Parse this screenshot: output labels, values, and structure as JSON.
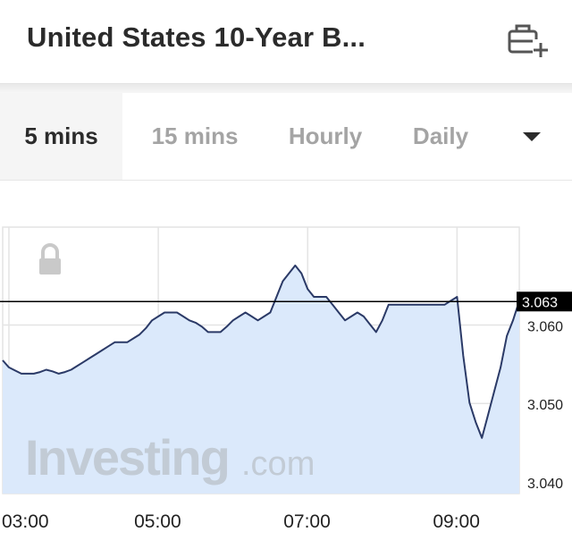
{
  "header": {
    "title": "United States 10-Year B...",
    "portfolio_icon": "briefcase-plus-icon"
  },
  "tabs": [
    {
      "label": "5 mins",
      "active": true
    },
    {
      "label": "15 mins",
      "active": false
    },
    {
      "label": "Hourly",
      "active": false
    },
    {
      "label": "Daily",
      "active": false
    }
  ],
  "dropdown_icon": "caret-down-icon",
  "lock_icon": "lock-icon",
  "watermark": {
    "brand": "Investing",
    "suffix": ".com"
  },
  "colors": {
    "line": "#2b3a67",
    "fill": "#dbe9fb",
    "grid": "#e4e4e4",
    "price_tag_bg": "#000000",
    "price_tag_text": "#ffffff",
    "current_price_line": "#000000"
  },
  "chart_data": {
    "type": "area",
    "title": "",
    "xlabel": "",
    "ylabel": "",
    "x_ticks": [
      "03:00",
      "05:00",
      "07:00",
      "09:00"
    ],
    "y_ticks": [
      "3.060",
      "3.050",
      "3.040"
    ],
    "xlim": [
      "02:55",
      "09:50"
    ],
    "ylim": [
      3.0385,
      3.0725
    ],
    "grid": true,
    "current_price": "3.063",
    "series": [
      {
        "x": [
          "02:55",
          "03:00",
          "03:05",
          "03:10",
          "03:15",
          "03:20",
          "03:25",
          "03:30",
          "03:35",
          "03:40",
          "03:45",
          "03:50",
          "03:55",
          "04:00",
          "04:05",
          "04:10",
          "04:15",
          "04:20",
          "04:25",
          "04:30",
          "04:35",
          "04:40",
          "04:45",
          "04:50",
          "04:55",
          "05:00",
          "05:05",
          "05:10",
          "05:15",
          "05:20",
          "05:25",
          "05:30",
          "05:35",
          "05:40",
          "05:45",
          "05:50",
          "05:55",
          "06:00",
          "06:05",
          "06:10",
          "06:15",
          "06:20",
          "06:25",
          "06:30",
          "06:35",
          "06:40",
          "06:45",
          "06:50",
          "06:55",
          "07:00",
          "07:05",
          "07:10",
          "07:15",
          "07:20",
          "07:25",
          "07:30",
          "07:35",
          "07:40",
          "07:45",
          "07:50",
          "07:55",
          "08:00",
          "08:05",
          "08:10",
          "08:15",
          "08:20",
          "08:25",
          "08:30",
          "08:35",
          "08:40",
          "08:45",
          "08:50",
          "08:55",
          "09:00",
          "09:05",
          "09:10",
          "09:15",
          "09:20",
          "09:25",
          "09:30",
          "09:35",
          "09:40",
          "09:45",
          "09:50"
        ],
        "y": [
          3.0555,
          3.0546,
          3.0542,
          3.0538,
          3.0538,
          3.0538,
          3.054,
          3.0543,
          3.0541,
          3.0538,
          3.054,
          3.0543,
          3.0548,
          3.0553,
          3.0558,
          3.0563,
          3.0568,
          3.0573,
          3.0578,
          3.0578,
          3.0578,
          3.0583,
          3.0588,
          3.0596,
          3.0606,
          3.0611,
          3.0616,
          3.0616,
          3.0616,
          3.0611,
          3.0606,
          3.0603,
          3.0598,
          3.0591,
          3.0591,
          3.0591,
          3.0598,
          3.0606,
          3.0611,
          3.0616,
          3.0611,
          3.0606,
          3.0611,
          3.0616,
          3.0636,
          3.0656,
          3.0666,
          3.0676,
          3.0666,
          3.0646,
          3.0636,
          3.0636,
          3.0636,
          3.0626,
          3.0616,
          3.0606,
          3.0611,
          3.0616,
          3.0611,
          3.0601,
          3.0591,
          3.0606,
          3.0626,
          3.0626,
          3.0626,
          3.0626,
          3.0626,
          3.0626,
          3.0626,
          3.0626,
          3.0626,
          3.0626,
          3.0631,
          3.0636,
          3.0561,
          3.0501,
          3.0476,
          3.0456,
          3.0486,
          3.0516,
          3.0546,
          3.0586,
          3.0606,
          3.0631
        ]
      }
    ]
  }
}
